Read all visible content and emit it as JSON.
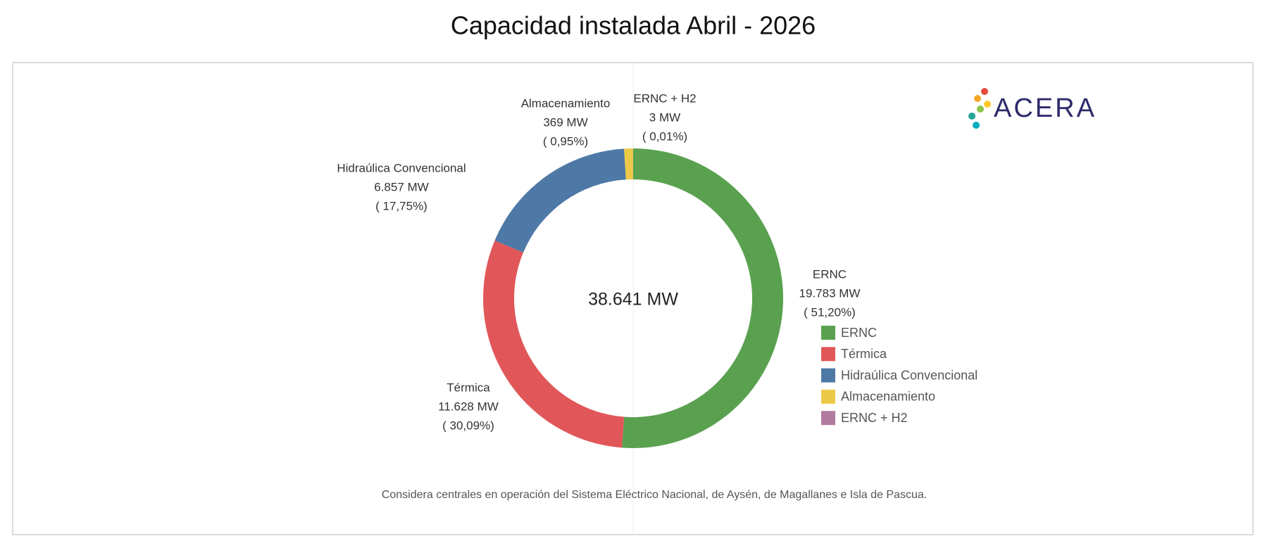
{
  "chart_data": {
    "type": "donut",
    "title": "Capacidad instalada Abril - 2026",
    "categories": [
      "ERNC",
      "Térmica",
      "Hidraúlica Convencional",
      "Almacenamiento",
      "ERNC + H2"
    ],
    "values": [
      19783,
      11628,
      6857,
      369,
      3
    ],
    "value_labels": [
      "19.783 MW",
      "11.628 MW",
      "6.857 MW",
      "369 MW",
      "3 MW"
    ],
    "percents": [
      51.2,
      30.09,
      17.75,
      0.95,
      0.01
    ],
    "percent_labels": [
      "( 51,20%)",
      "( 30,09%)",
      "( 17,75%)",
      "( 0,95%)",
      "( 0,01%)"
    ],
    "colors": [
      "#59a14f",
      "#e15759",
      "#4e79a7",
      "#edc948",
      "#b07aa1"
    ],
    "total": 38641,
    "total_label": "38.641 MW",
    "footnote": "Considera centrales en operación del Sistema Eléctrico Nacional, de Aysén, de Magallanes e Isla de Pascua.",
    "logo": "ACERA"
  }
}
